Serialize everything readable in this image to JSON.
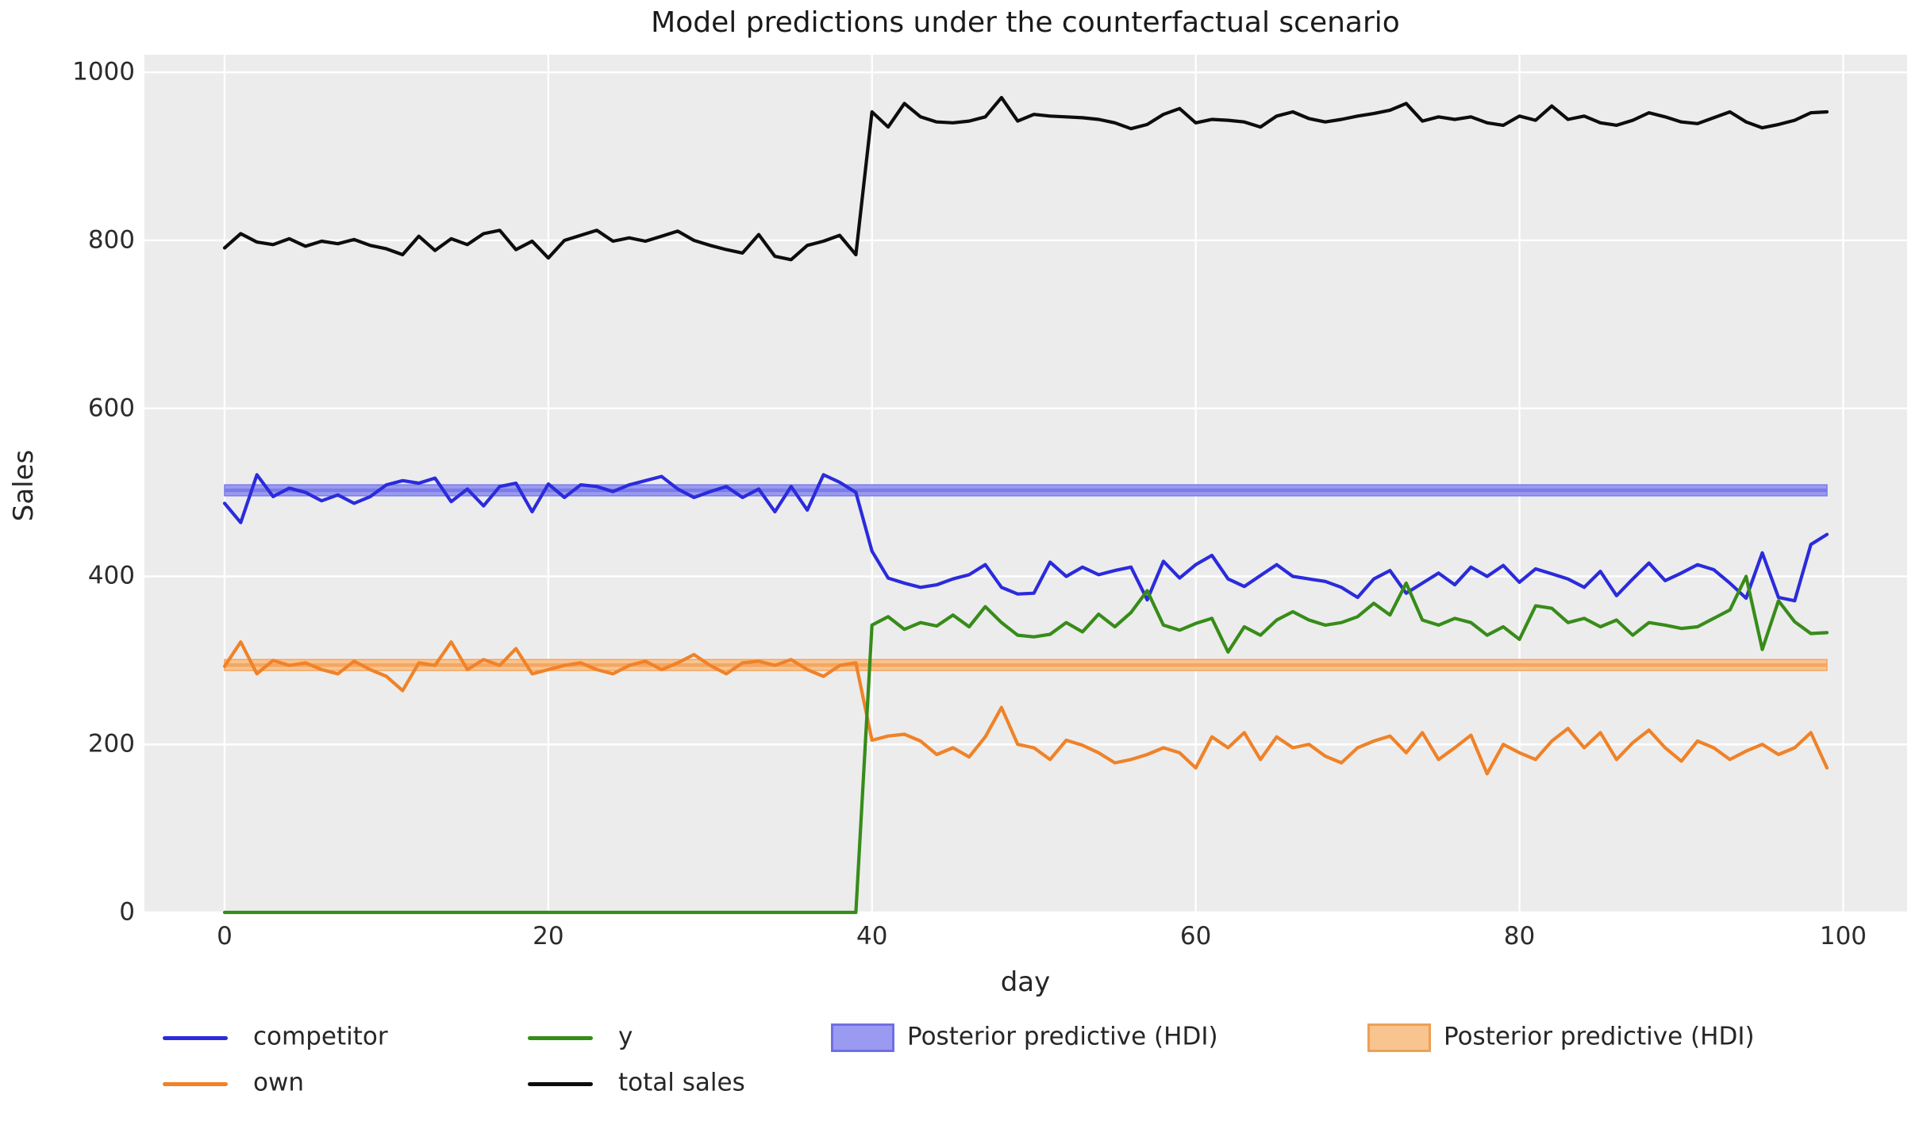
{
  "title": "Model predictions under the counterfactual scenario",
  "colors": {
    "figure_background": "#ffffff",
    "axes_background": "#ececec",
    "gridline": "#ffffff",
    "text": "#262626",
    "competitor": "#2b2bdc",
    "own": "#f08228",
    "y": "#378c19",
    "total_sales": "#0d0d0d",
    "hdi_blue_fill": "#9a9af0",
    "hdi_blue_edge": "#7b7bea",
    "hdi_orange_fill": "#f8c490",
    "hdi_orange_edge": "#f4a660"
  },
  "legend": {
    "items": [
      {
        "label": "competitor",
        "swatch": "line",
        "color": "#2b2bdc"
      },
      {
        "label": "own",
        "swatch": "line",
        "color": "#f08228"
      },
      {
        "label": "y",
        "swatch": "line",
        "color": "#378c19"
      },
      {
        "label": "total sales",
        "swatch": "line",
        "color": "#0d0d0d"
      },
      {
        "label": "Posterior predictive (HDI)",
        "swatch": "patch",
        "fill": "#9a9af0",
        "edge": "#6f6fe5"
      },
      {
        "label": "Posterior predictive (HDI)",
        "swatch": "patch",
        "fill": "#f8c490",
        "edge": "#efa054"
      }
    ]
  },
  "chart_data": {
    "type": "line",
    "title": "Model predictions under the counterfactual scenario",
    "xlabel": "day",
    "ylabel": "Sales",
    "xlim": [
      -4.95,
      103.95
    ],
    "ylim": [
      0,
      1021
    ],
    "xticks": [
      0,
      20,
      40,
      60,
      80,
      100
    ],
    "yticks": [
      0,
      200,
      400,
      600,
      800,
      1000
    ],
    "grid": true,
    "legend_position": "below-axes",
    "x": [
      0,
      1,
      2,
      3,
      4,
      5,
      6,
      7,
      8,
      9,
      10,
      11,
      12,
      13,
      14,
      15,
      16,
      17,
      18,
      19,
      20,
      21,
      22,
      23,
      24,
      25,
      26,
      27,
      28,
      29,
      30,
      31,
      32,
      33,
      34,
      35,
      36,
      37,
      38,
      39,
      40,
      41,
      42,
      43,
      44,
      45,
      46,
      47,
      48,
      49,
      50,
      51,
      52,
      53,
      54,
      55,
      56,
      57,
      58,
      59,
      60,
      61,
      62,
      63,
      64,
      65,
      66,
      67,
      68,
      69,
      70,
      71,
      72,
      73,
      74,
      75,
      76,
      77,
      78,
      79,
      80,
      81,
      82,
      83,
      84,
      85,
      86,
      87,
      88,
      89,
      90,
      91,
      92,
      93,
      94,
      95,
      96,
      97,
      98,
      99
    ],
    "series": [
      {
        "name": "competitor",
        "color": "#2b2bdc",
        "values": [
          487,
          464,
          521,
          495,
          505,
          500,
          490,
          497,
          487,
          495,
          509,
          514,
          511,
          517,
          489,
          504,
          484,
          507,
          511,
          477,
          510,
          494,
          509,
          507,
          501,
          509,
          514,
          519,
          504,
          494,
          501,
          507,
          494,
          504,
          477,
          507,
          479,
          521,
          512,
          500,
          430,
          398,
          392,
          387,
          390,
          397,
          402,
          414,
          387,
          379,
          380,
          417,
          400,
          411,
          402,
          407,
          411,
          372,
          418,
          398,
          414,
          425,
          397,
          388,
          401,
          414,
          400,
          397,
          394,
          387,
          375,
          397,
          407,
          380,
          392,
          404,
          390,
          411,
          400,
          413,
          393,
          409,
          403,
          397,
          387,
          406,
          377,
          397,
          416,
          395,
          404,
          414,
          408,
          392,
          374,
          428,
          375,
          371,
          438,
          450
        ]
      },
      {
        "name": "own",
        "color": "#f08228",
        "values": [
          293,
          322,
          284,
          300,
          294,
          297,
          289,
          284,
          299,
          289,
          281,
          264,
          297,
          294,
          322,
          289,
          301,
          294,
          314,
          284,
          289,
          294,
          297,
          289,
          284,
          294,
          299,
          289,
          297,
          307,
          294,
          284,
          297,
          299,
          294,
          301,
          289,
          281,
          294,
          297,
          205,
          210,
          212,
          204,
          188,
          196,
          185,
          209,
          244,
          200,
          196,
          182,
          205,
          199,
          190,
          178,
          182,
          188,
          196,
          190,
          172,
          209,
          196,
          214,
          182,
          209,
          196,
          200,
          186,
          178,
          196,
          204,
          210,
          190,
          214,
          182,
          196,
          211,
          165,
          200,
          190,
          182,
          204,
          219,
          196,
          214,
          182,
          202,
          217,
          196,
          180,
          204,
          196,
          182,
          192,
          200,
          188,
          196,
          214,
          172
        ]
      },
      {
        "name": "y",
        "color": "#378c19",
        "values": [
          0,
          0,
          0,
          0,
          0,
          0,
          0,
          0,
          0,
          0,
          0,
          0,
          0,
          0,
          0,
          0,
          0,
          0,
          0,
          0,
          0,
          0,
          0,
          0,
          0,
          0,
          0,
          0,
          0,
          0,
          0,
          0,
          0,
          0,
          0,
          0,
          0,
          0,
          0,
          0,
          342,
          352,
          337,
          345,
          341,
          354,
          340,
          364,
          345,
          330,
          328,
          331,
          345,
          334,
          355,
          340,
          357,
          383,
          342,
          336,
          344,
          350,
          310,
          340,
          330,
          348,
          358,
          348,
          342,
          345,
          352,
          368,
          354,
          392,
          348,
          342,
          350,
          345,
          330,
          340,
          325,
          365,
          362,
          345,
          350,
          340,
          348,
          330,
          345,
          342,
          338,
          340,
          350,
          360,
          400,
          313,
          371,
          346,
          332,
          333
        ]
      },
      {
        "name": "total sales",
        "color": "#0d0d0d",
        "values": [
          791,
          808,
          798,
          795,
          802,
          793,
          799,
          796,
          801,
          794,
          790,
          783,
          805,
          788,
          802,
          795,
          808,
          812,
          789,
          799,
          779,
          800,
          806,
          812,
          799,
          803,
          799,
          805,
          811,
          800,
          794,
          789,
          785,
          807,
          781,
          777,
          794,
          799,
          806,
          783,
          953,
          935,
          963,
          947,
          941,
          940,
          942,
          947,
          970,
          942,
          950,
          948,
          947,
          946,
          944,
          940,
          933,
          938,
          950,
          957,
          940,
          944,
          943,
          941,
          935,
          948,
          953,
          945,
          941,
          944,
          948,
          951,
          955,
          963,
          942,
          947,
          944,
          947,
          940,
          937,
          948,
          943,
          960,
          944,
          948,
          940,
          937,
          943,
          952,
          947,
          941,
          939,
          946,
          953,
          941,
          934,
          938,
          943,
          952,
          953
        ]
      }
    ],
    "bands": [
      {
        "name": "Posterior predictive (HDI)",
        "series_ref": "competitor",
        "fill": "#9a9af0",
        "edge": "#7b7bea",
        "x_range": [
          0,
          99
        ],
        "lo": 496,
        "hi": 509,
        "center": 502.5
      },
      {
        "name": "Posterior predictive (HDI)",
        "series_ref": "own",
        "fill": "#f8c490",
        "edge": "#f4a660",
        "x_range": [
          0,
          99
        ],
        "lo": 288,
        "hi": 301,
        "center": 294.5
      }
    ]
  }
}
